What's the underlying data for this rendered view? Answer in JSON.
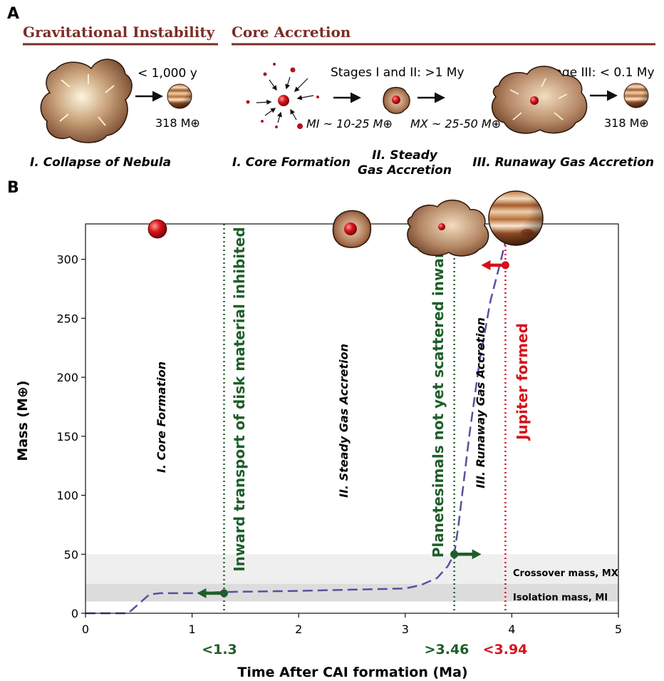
{
  "panel_a": {
    "letter": "A",
    "section_left": "Gravitational Instability",
    "section_right": "Core Accretion",
    "gi_time": "< 1,000 y",
    "gi_mass": "318 M⊕",
    "stages_label": "Stages I and II: >1 My",
    "stage3_label": "Stage III: < 0.1 My",
    "mass_i": "MI ~ 10-25 M⊕",
    "mass_x": "MX ~ 25-50 M⊕",
    "ca_mass": "318 M⊕",
    "caption_gi": "I. Collapse of Nebula",
    "caption_core": "I. Core Formation",
    "caption_steady_1": "II. Steady",
    "caption_steady_2": "Gas Accretion",
    "caption_runaway": "III. Runaway Gas Accretion"
  },
  "panel_b": {
    "letter": "B",
    "xlabel": "Time After CAI formation (Ma)",
    "ylabel": "Mass (M⊕)",
    "phase_core": "I. Core Formation",
    "phase_steady": "II. Steady Gas Accretion",
    "phase_runaway": "III. Runaway Gas Accretion",
    "vline_inward": "Inward transport of disk material inhibited",
    "vline_planetesimals": "Planetesimals not yet scattered inward",
    "vline_jupiter": "Jupiter  formed",
    "band_crossover": "Crossover mass, MX",
    "band_isolation": "Isolation mass, MI",
    "marker_13": "<1.3",
    "marker_346": ">3.46",
    "marker_394": "<3.94"
  },
  "colors": {
    "header": "#7b2d26",
    "green": "#1e5e2a",
    "red": "#d7101b",
    "curve": "#5a4f9e",
    "band_crossover": "#efefef",
    "band_isolation": "#dcdcdc"
  },
  "chart_data": {
    "type": "line",
    "xlabel": "Time After CAI formation (Ma)",
    "ylabel": "Mass (M⊕)",
    "xlim": [
      0,
      5
    ],
    "ylim": [
      0,
      330
    ],
    "xticks": [
      0,
      1,
      2,
      3,
      4,
      5
    ],
    "yticks": [
      0,
      50,
      100,
      150,
      200,
      250,
      300
    ],
    "grid": false,
    "series": [
      {
        "x": [
          0.0,
          0.4,
          0.5,
          0.6,
          0.7,
          1.0,
          1.3,
          2.0,
          2.5,
          3.0,
          3.15,
          3.3,
          3.4,
          3.46,
          3.5,
          3.6,
          3.7,
          3.8,
          3.9,
          3.94
        ],
        "y": [
          0,
          0,
          8,
          16,
          17,
          17,
          18,
          19,
          20,
          21,
          24,
          30,
          40,
          50,
          75,
          150,
          215,
          265,
          300,
          315
        ]
      }
    ],
    "bands": [
      {
        "name": "Isolation mass, MI",
        "y0": 10,
        "y1": 25
      },
      {
        "name": "Crossover mass, MX",
        "y0": 25,
        "y1": 50
      }
    ],
    "vlines": [
      {
        "x": 1.3,
        "label": "Inward transport of disk material inhibited"
      },
      {
        "x": 3.46,
        "label": "Planetesimals not yet scattered inward"
      },
      {
        "x": 3.94,
        "label": "Jupiter  formed"
      }
    ],
    "points": [
      {
        "x": 1.3,
        "y": 17,
        "arrow": "left"
      },
      {
        "x": 3.46,
        "y": 50,
        "arrow": "right"
      },
      {
        "x": 3.94,
        "y": 295,
        "arrow": "left"
      }
    ]
  }
}
